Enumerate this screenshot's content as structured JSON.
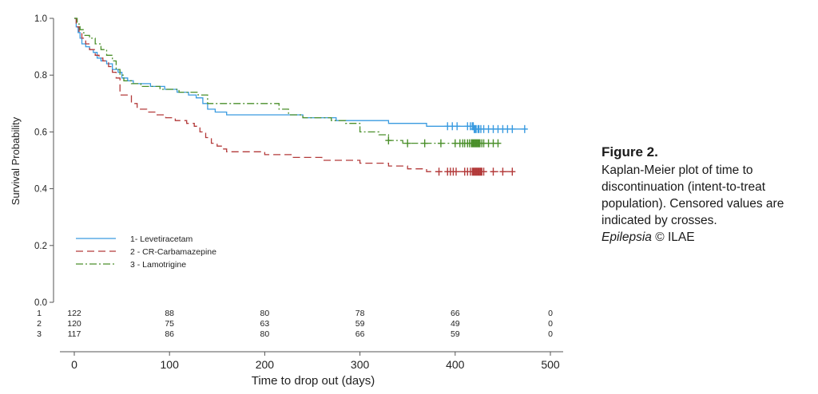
{
  "chart_data": {
    "type": "line",
    "subtype": "kaplan-meier",
    "xlabel": "Time to drop out (days)",
    "ylabel": "Survival Probability",
    "xlim": [
      0,
      500
    ],
    "ylim": [
      0,
      1.0
    ],
    "xticks": [
      0,
      100,
      200,
      300,
      400,
      500
    ],
    "xtick_labels": [
      "0",
      "100",
      "200",
      "300",
      "400",
      "500"
    ],
    "yticks": [
      0.0,
      0.2,
      0.4,
      0.6,
      0.8,
      1.0
    ],
    "ytick_labels": [
      "0.0",
      "0.2",
      "0.4",
      "0.6",
      "0.8",
      "1.0"
    ],
    "grid": false,
    "legend_placement": "lower-left",
    "series": [
      {
        "name": "1- Levetiracetam",
        "color": "#3a9be0",
        "dash": "solid",
        "steps": [
          [
            0,
            1.0
          ],
          [
            2,
            0.97
          ],
          [
            4,
            0.95
          ],
          [
            6,
            0.93
          ],
          [
            8,
            0.91
          ],
          [
            12,
            0.9
          ],
          [
            16,
            0.89
          ],
          [
            20,
            0.88
          ],
          [
            24,
            0.86
          ],
          [
            28,
            0.85
          ],
          [
            34,
            0.84
          ],
          [
            40,
            0.82
          ],
          [
            46,
            0.81
          ],
          [
            50,
            0.79
          ],
          [
            56,
            0.78
          ],
          [
            62,
            0.77
          ],
          [
            80,
            0.76
          ],
          [
            95,
            0.75
          ],
          [
            108,
            0.74
          ],
          [
            120,
            0.73
          ],
          [
            128,
            0.72
          ],
          [
            135,
            0.7
          ],
          [
            140,
            0.68
          ],
          [
            148,
            0.67
          ],
          [
            160,
            0.66
          ],
          [
            240,
            0.65
          ],
          [
            275,
            0.64
          ],
          [
            330,
            0.63
          ],
          [
            370,
            0.62
          ],
          [
            420,
            0.61
          ],
          [
            475,
            0.61
          ]
        ],
        "censored": [
          392,
          397,
          402,
          413,
          416,
          418,
          419,
          420,
          421,
          422,
          424,
          425,
          427,
          430,
          435,
          440,
          445,
          450,
          455,
          460,
          473
        ]
      },
      {
        "name": "2 - CR-Carbamazepine",
        "color": "#b33a3a",
        "dash": "long-dash",
        "steps": [
          [
            0,
            1.0
          ],
          [
            2,
            0.97
          ],
          [
            5,
            0.95
          ],
          [
            8,
            0.93
          ],
          [
            12,
            0.91
          ],
          [
            16,
            0.89
          ],
          [
            22,
            0.87
          ],
          [
            26,
            0.86
          ],
          [
            30,
            0.85
          ],
          [
            36,
            0.83
          ],
          [
            40,
            0.81
          ],
          [
            44,
            0.79
          ],
          [
            48,
            0.73
          ],
          [
            60,
            0.7
          ],
          [
            66,
            0.68
          ],
          [
            76,
            0.67
          ],
          [
            86,
            0.66
          ],
          [
            96,
            0.65
          ],
          [
            106,
            0.64
          ],
          [
            118,
            0.63
          ],
          [
            126,
            0.62
          ],
          [
            132,
            0.6
          ],
          [
            138,
            0.58
          ],
          [
            144,
            0.56
          ],
          [
            150,
            0.55
          ],
          [
            156,
            0.54
          ],
          [
            160,
            0.53
          ],
          [
            200,
            0.52
          ],
          [
            230,
            0.51
          ],
          [
            260,
            0.5
          ],
          [
            300,
            0.49
          ],
          [
            330,
            0.48
          ],
          [
            350,
            0.47
          ],
          [
            370,
            0.46
          ],
          [
            460,
            0.46
          ]
        ],
        "censored": [
          383,
          392,
          395,
          398,
          401,
          410,
          413,
          416,
          418,
          419,
          420,
          421,
          422,
          423,
          424,
          425,
          426,
          427,
          428,
          430,
          440,
          450,
          460
        ]
      },
      {
        "name": "3 - Lamotrigine",
        "color": "#4a8f2a",
        "dash": "dash-dot",
        "steps": [
          [
            0,
            1.0
          ],
          [
            3,
            0.98
          ],
          [
            6,
            0.96
          ],
          [
            10,
            0.94
          ],
          [
            16,
            0.93
          ],
          [
            22,
            0.91
          ],
          [
            28,
            0.89
          ],
          [
            34,
            0.87
          ],
          [
            40,
            0.85
          ],
          [
            44,
            0.82
          ],
          [
            48,
            0.8
          ],
          [
            52,
            0.78
          ],
          [
            60,
            0.77
          ],
          [
            70,
            0.76
          ],
          [
            90,
            0.75
          ],
          [
            110,
            0.74
          ],
          [
            130,
            0.73
          ],
          [
            140,
            0.7
          ],
          [
            215,
            0.68
          ],
          [
            225,
            0.66
          ],
          [
            240,
            0.65
          ],
          [
            270,
            0.64
          ],
          [
            285,
            0.63
          ],
          [
            300,
            0.6
          ],
          [
            320,
            0.59
          ],
          [
            330,
            0.57
          ],
          [
            345,
            0.56
          ],
          [
            445,
            0.56
          ]
        ],
        "censored": [
          330,
          350,
          368,
          385,
          400,
          405,
          408,
          410,
          413,
          415,
          417,
          418,
          419,
          420,
          421,
          422,
          423,
          424,
          425,
          426,
          428,
          430,
          435,
          440,
          445
        ]
      }
    ],
    "risk_table": {
      "timepoints": [
        0,
        100,
        200,
        300,
        400,
        500
      ],
      "rows": [
        {
          "label": "1",
          "values": [
            "122",
            "88",
            "80",
            "78",
            "66",
            "0"
          ]
        },
        {
          "label": "2",
          "values": [
            "120",
            "75",
            "63",
            "59",
            "49",
            "0"
          ]
        },
        {
          "label": "3",
          "values": [
            "117",
            "86",
            "80",
            "66",
            "59",
            "0"
          ]
        }
      ]
    }
  },
  "caption": {
    "title": "Figure 2.",
    "text": "Kaplan-Meier plot of time to discontinuation (intent-to-treat population). Censored values are indicated by crosses.",
    "journal": "Epilepsia",
    "credit": "© ILAE"
  }
}
